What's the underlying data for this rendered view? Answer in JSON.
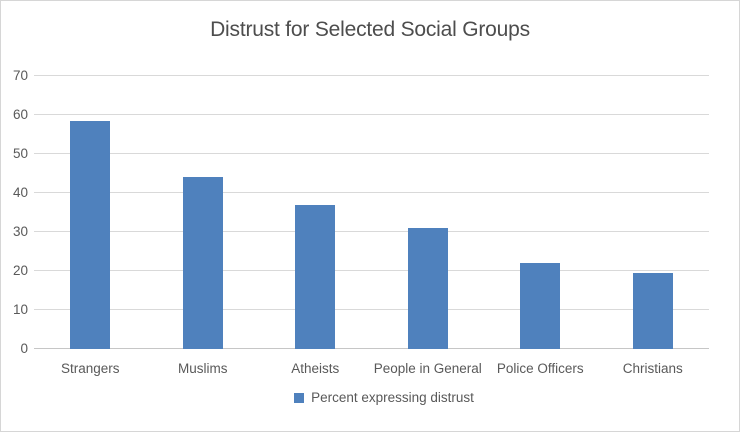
{
  "chart_data": {
    "type": "bar",
    "title": "Distrust for Selected Social Groups",
    "categories": [
      "Strangers",
      "Muslims",
      "Atheists",
      "People in General",
      "Police Officers",
      "Christians"
    ],
    "series": [
      {
        "name": "Percent expressing distrust",
        "values": [
          58.5,
          44,
          37,
          31,
          22,
          19.5
        ]
      }
    ],
    "xlabel": "",
    "ylabel": "",
    "ylim": [
      0,
      70
    ],
    "yticks": [
      0,
      10,
      20,
      30,
      40,
      50,
      60,
      70
    ],
    "grid": true,
    "legend_position": "bottom-center",
    "colors": {
      "bar": "#4f81bd",
      "gridline": "#d9d9d9",
      "axis_line": "#c6c6c6",
      "tick_text": "#595959",
      "title_text": "#4d4d4d"
    }
  }
}
